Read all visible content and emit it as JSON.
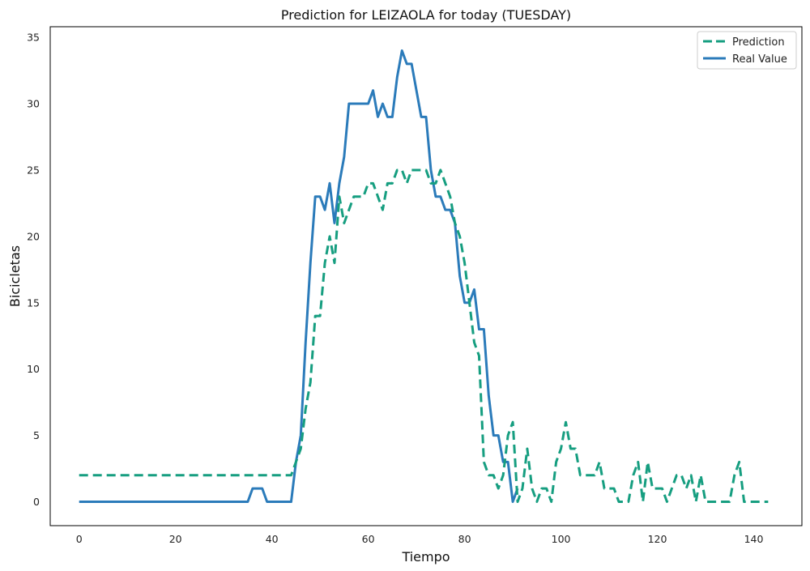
{
  "chart_data": {
    "type": "line",
    "title": "Prediction for LEIZAOLA for today (TUESDAY)",
    "xlabel": "Tiempo",
    "ylabel": "Bicicletas",
    "xlim": [
      -6,
      150
    ],
    "ylim": [
      -1.8,
      35.8
    ],
    "xticks": [
      0,
      20,
      40,
      60,
      80,
      100,
      120,
      140
    ],
    "yticks": [
      0,
      5,
      10,
      15,
      20,
      25,
      30,
      35
    ],
    "grid": false,
    "legend_position": "top-right",
    "series": [
      {
        "name": "Prediction",
        "style": "dashed",
        "color": "#169e80",
        "x": [
          0,
          1,
          2,
          3,
          4,
          5,
          6,
          7,
          8,
          9,
          10,
          11,
          12,
          13,
          14,
          15,
          16,
          17,
          18,
          19,
          20,
          21,
          22,
          23,
          24,
          25,
          26,
          27,
          28,
          29,
          30,
          31,
          32,
          33,
          34,
          35,
          36,
          37,
          38,
          39,
          40,
          41,
          42,
          43,
          44,
          45,
          46,
          47,
          48,
          49,
          50,
          51,
          52,
          53,
          54,
          55,
          56,
          57,
          58,
          59,
          60,
          61,
          62,
          63,
          64,
          65,
          66,
          67,
          68,
          69,
          70,
          71,
          72,
          73,
          74,
          75,
          76,
          77,
          78,
          79,
          80,
          81,
          82,
          83,
          84,
          85,
          86,
          87,
          88,
          89,
          90,
          91,
          92,
          93,
          94,
          95,
          96,
          97,
          98,
          99,
          100,
          101,
          102,
          103,
          104,
          105,
          106,
          107,
          108,
          109,
          110,
          111,
          112,
          113,
          114,
          115,
          116,
          117,
          118,
          119,
          120,
          121,
          122,
          123,
          124,
          125,
          126,
          127,
          128,
          129,
          130,
          131,
          132,
          133,
          134,
          135,
          136,
          137,
          138,
          139,
          140,
          141,
          142,
          143
        ],
        "y": [
          2,
          2,
          2,
          2,
          2,
          2,
          2,
          2,
          2,
          2,
          2,
          2,
          2,
          2,
          2,
          2,
          2,
          2,
          2,
          2,
          2,
          2,
          2,
          2,
          2,
          2,
          2,
          2,
          2,
          2,
          2,
          2,
          2,
          2,
          2,
          2,
          2,
          2,
          2,
          2,
          2,
          2,
          2,
          2,
          2,
          3,
          4,
          7,
          9,
          14,
          14,
          18,
          20,
          18,
          23,
          21,
          22,
          23,
          23,
          23,
          24,
          24,
          23,
          22,
          24,
          24,
          25,
          25,
          24,
          25,
          25,
          25,
          25,
          24,
          24,
          25,
          24,
          23,
          21,
          20,
          18,
          15,
          12,
          11,
          3,
          2,
          2,
          1,
          2,
          5,
          6,
          0,
          1,
          4,
          1,
          0,
          1,
          1,
          0,
          3,
          4,
          6,
          4,
          4,
          2,
          2,
          2,
          2,
          3,
          1,
          1,
          1,
          0,
          0,
          0,
          2,
          3,
          0,
          3,
          1,
          1,
          1,
          0,
          1,
          2,
          2,
          1,
          2,
          0,
          2,
          0,
          0,
          0,
          0,
          0,
          0,
          2,
          3,
          0,
          0,
          0,
          0,
          0,
          0
        ]
      },
      {
        "name": "Real Value",
        "style": "solid",
        "color": "#2b7bba",
        "x": [
          0,
          1,
          2,
          3,
          4,
          5,
          6,
          7,
          8,
          9,
          10,
          11,
          12,
          13,
          14,
          15,
          16,
          17,
          18,
          19,
          20,
          21,
          22,
          23,
          24,
          25,
          26,
          27,
          28,
          29,
          30,
          31,
          32,
          33,
          34,
          35,
          36,
          37,
          38,
          39,
          40,
          41,
          42,
          43,
          44,
          45,
          46,
          47,
          48,
          49,
          50,
          51,
          52,
          53,
          54,
          55,
          56,
          57,
          58,
          59,
          60,
          61,
          62,
          63,
          64,
          65,
          66,
          67,
          68,
          69,
          70,
          71,
          72,
          73,
          74,
          75,
          76,
          77,
          78,
          79,
          80,
          81,
          82,
          83,
          84,
          85,
          86,
          87,
          88,
          89,
          90,
          91
        ],
        "y": [
          0,
          0,
          0,
          0,
          0,
          0,
          0,
          0,
          0,
          0,
          0,
          0,
          0,
          0,
          0,
          0,
          0,
          0,
          0,
          0,
          0,
          0,
          0,
          0,
          0,
          0,
          0,
          0,
          0,
          0,
          0,
          0,
          0,
          0,
          0,
          0,
          1,
          1,
          1,
          0,
          0,
          0,
          0,
          0,
          0,
          3,
          5,
          12,
          18,
          23,
          23,
          22,
          24,
          21,
          24,
          26,
          30,
          30,
          30,
          30,
          30,
          31,
          29,
          30,
          29,
          29,
          32,
          34,
          33,
          33,
          31,
          29,
          29,
          25,
          23,
          23,
          22,
          22,
          21,
          17,
          15,
          15,
          16,
          13,
          13,
          8,
          5,
          5,
          3,
          3,
          0,
          1
        ]
      }
    ]
  }
}
